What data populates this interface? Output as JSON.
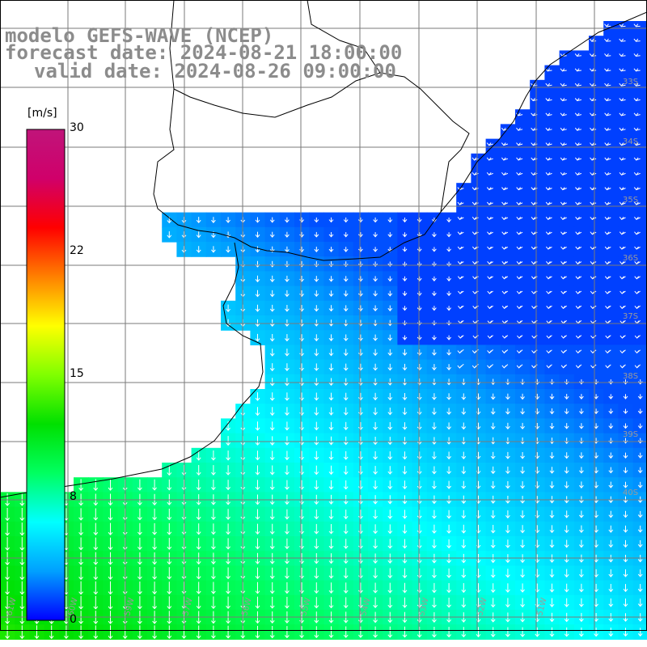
{
  "titles": {
    "model": "modelo GEFS-WAVE (NCEP)",
    "forecast": "forecast date: 2024-08-21 18:00:00",
    "valid": "valid date: 2024-08-26 09:00:00"
  },
  "colorbar": {
    "unit": "[m/s]",
    "ticks": [
      "30",
      "22",
      "15",
      "8",
      "0"
    ],
    "tick_values": [
      30,
      22,
      15,
      8,
      0
    ],
    "range": [
      0,
      30
    ],
    "colors": [
      "#0000ff",
      "#00a0ff",
      "#00ffff",
      "#00ff60",
      "#00e000",
      "#80ff00",
      "#ffff00",
      "#ff8000",
      "#ff0000",
      "#d0006a",
      "#c0147a"
    ]
  },
  "lat_labels": [
    "33S",
    "34S",
    "35S",
    "36S",
    "37S",
    "38S",
    "39S",
    "40S"
  ],
  "lon_labels": [
    "61W",
    "60W",
    "59W",
    "57W",
    "56W",
    "55W",
    "54W",
    "53W",
    "52W",
    "51W"
  ],
  "colors": {
    "land": "#ffffff",
    "grid": "#7a7a7a",
    "coast": "#000000",
    "arrow": "#ffffff",
    "title": "#8c8c8c"
  }
}
